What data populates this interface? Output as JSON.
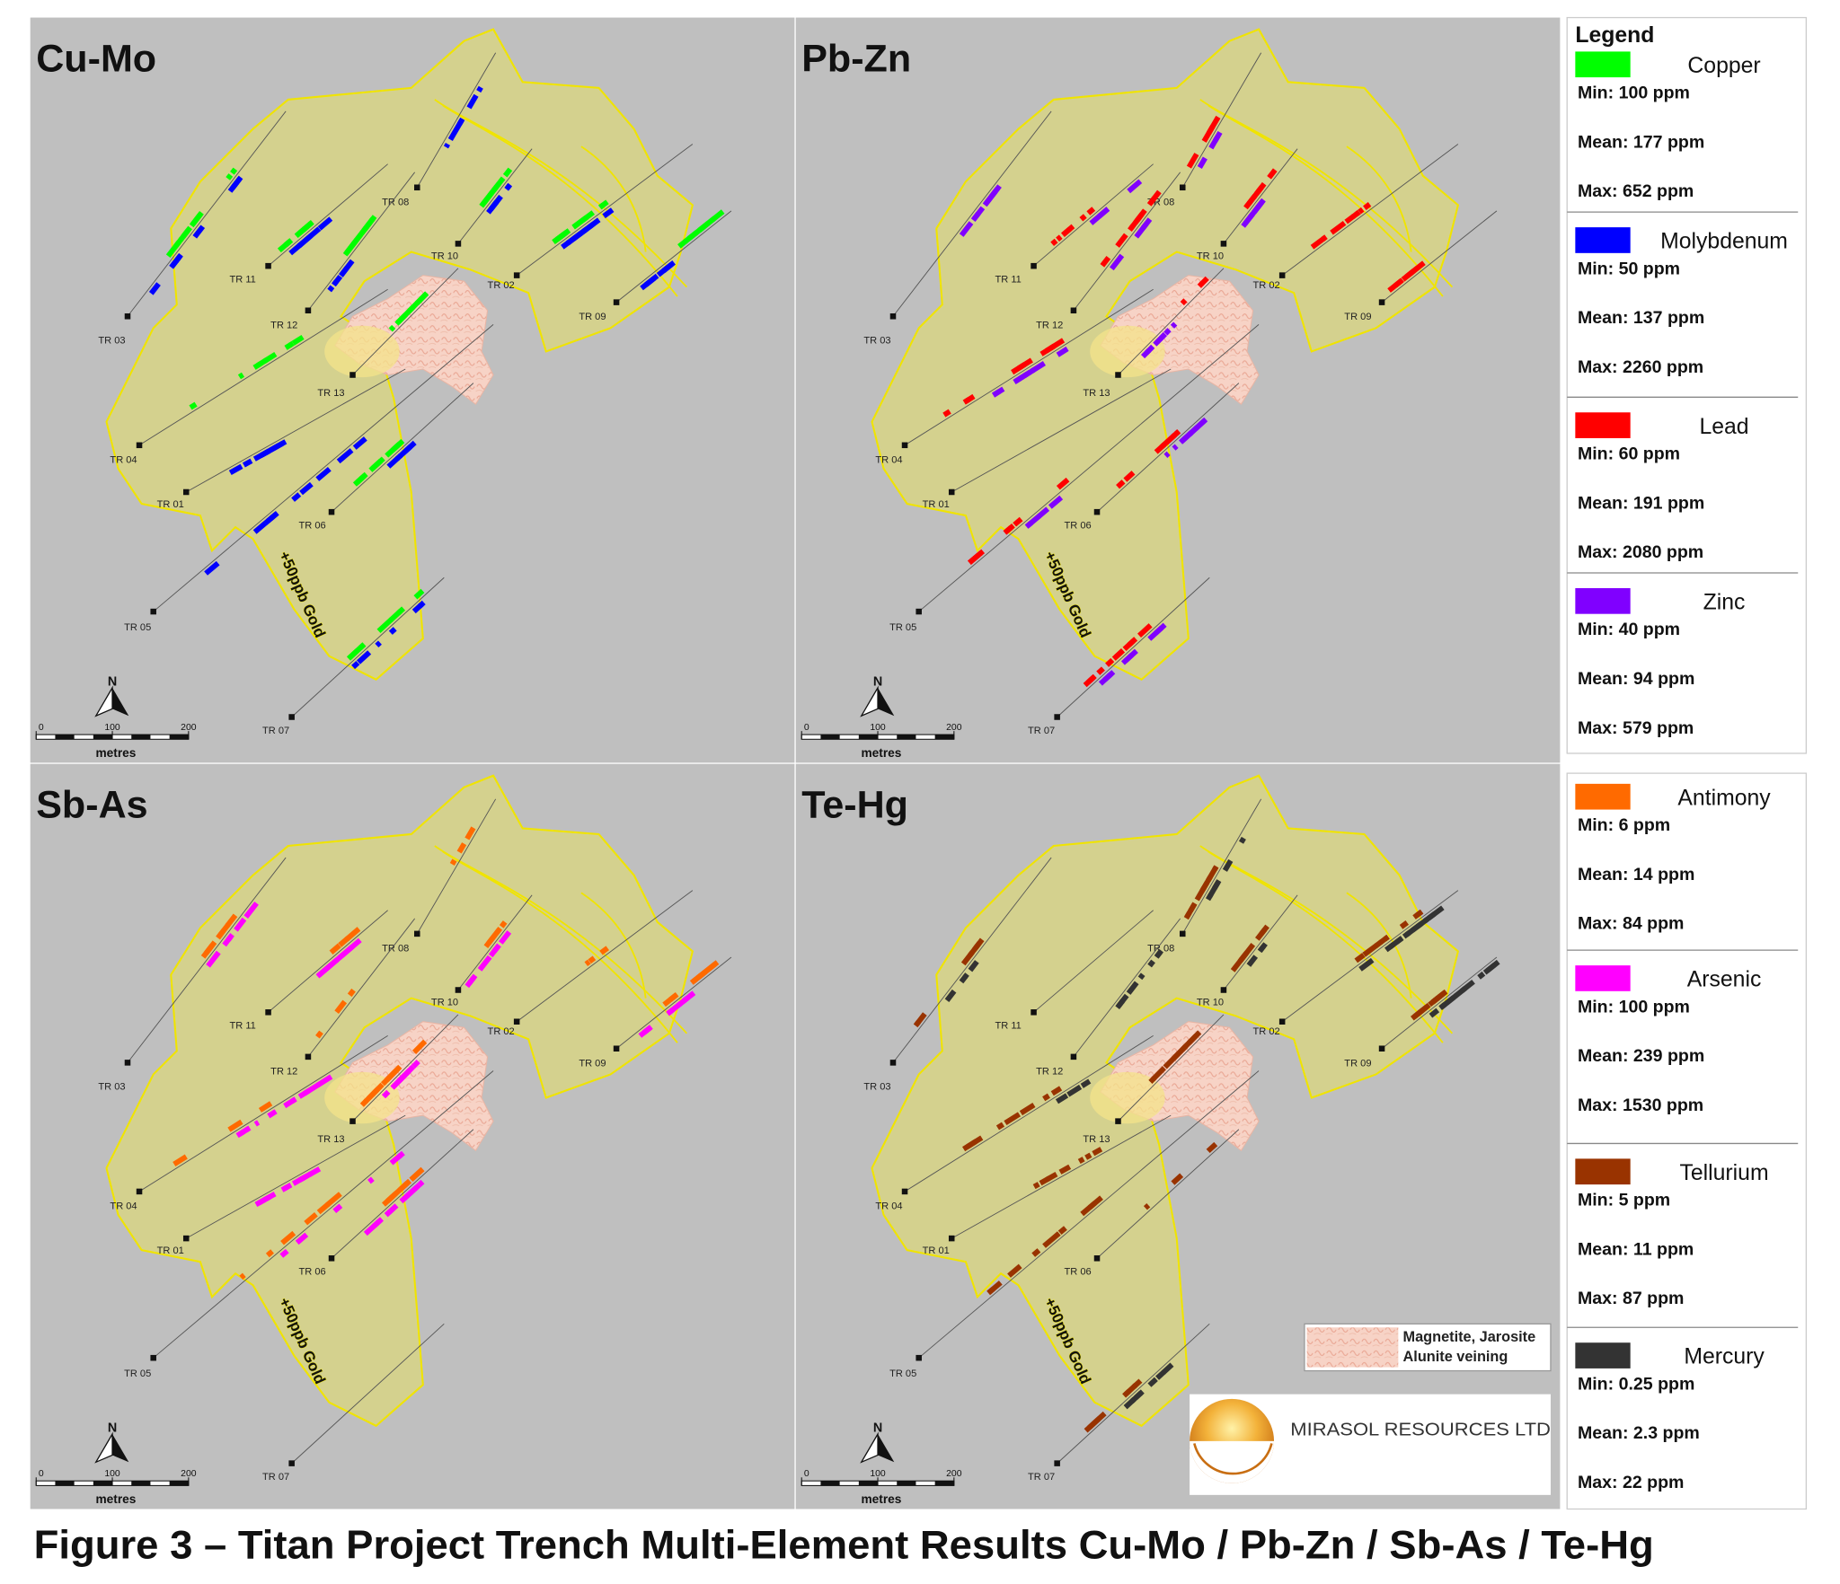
{
  "panels": [
    {
      "title": "Cu-Mo"
    },
    {
      "title": "Pb-Zn"
    },
    {
      "title": "Sb-As"
    },
    {
      "title": "Te-Hg"
    }
  ],
  "trench_labels": [
    "TR 01",
    "TR 02",
    "TR 03",
    "TR 04",
    "TR 05",
    "TR 06",
    "TR 07",
    "TR 08",
    "TR 09",
    "TR 10",
    "TR 11",
    "TR 12",
    "TR 13"
  ],
  "gold_label": "+50ppb Gold",
  "scale_bar": {
    "north": "N",
    "ticks": [
      0,
      100,
      200
    ],
    "unit": "metres"
  },
  "legend": {
    "title": "Legend",
    "elements": [
      {
        "name": "Copper",
        "color": "#00ff00",
        "min": "Min: 100 ppm",
        "mean": "Mean: 177 ppm",
        "max": "Max: 652 ppm"
      },
      {
        "name": "Molybdenum",
        "color": "#0000ff",
        "min": "Min: 50 ppm",
        "mean": "Mean: 137 ppm",
        "max": "Max: 2260 ppm"
      },
      {
        "name": "Lead",
        "color": "#ff0000",
        "min": "Min: 60 ppm",
        "mean": "Mean: 191 ppm",
        "max": "Max: 2080 ppm"
      },
      {
        "name": "Zinc",
        "color": "#8000ff",
        "min": "Min: 40 ppm",
        "mean": "Mean: 94 ppm",
        "max": "Max: 579 ppm"
      },
      {
        "name": "Antimony",
        "color": "#ff6a00",
        "min": "Min: 6 ppm",
        "mean": "Mean: 14 ppm",
        "max": "Max: 84 ppm"
      },
      {
        "name": "Arsenic",
        "color": "#ff00ff",
        "min": "Min: 100 ppm",
        "mean": "Mean: 239 ppm",
        "max": "Max: 1530 ppm"
      },
      {
        "name": "Tellurium",
        "color": "#993300",
        "min": "Min: 5 ppm",
        "mean": "Mean: 11 ppm",
        "max": "Max: 87 ppm"
      },
      {
        "name": "Mercury",
        "color": "#333333",
        "min": "Min: 0.25 ppm",
        "mean": "Mean: 2.3 ppm",
        "max": "Max: 22 ppm"
      }
    ]
  },
  "veining_legend": [
    "Magnetite, Jarosite",
    "Alunite veining"
  ],
  "company": "MIRASOL RESOURCES LTD",
  "caption": "Figure 3 – Titan Project Trench Multi-Element Results Cu-Mo / Pb-Zn / Sb-As / Te-Hg"
}
